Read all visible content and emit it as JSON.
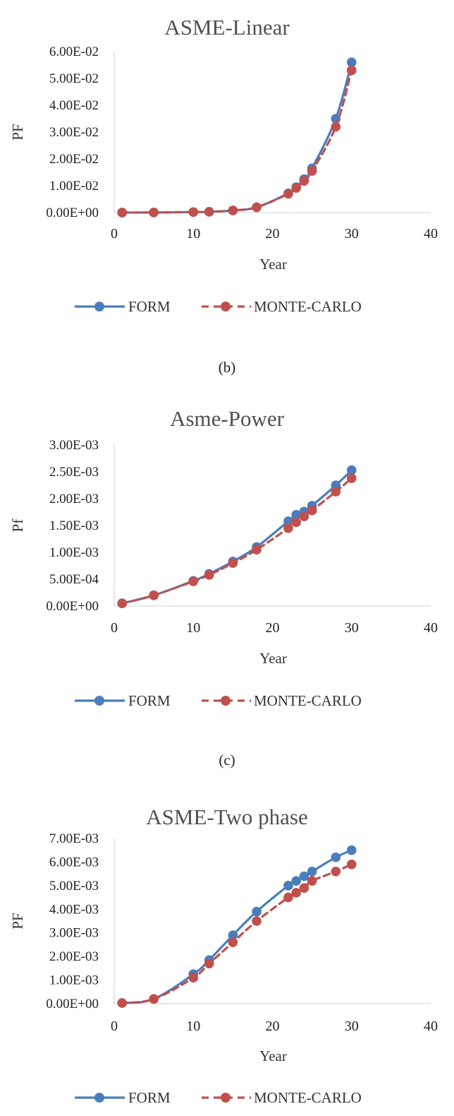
{
  "captions": [
    "(b)",
    "(c)"
  ],
  "legend": {
    "form_label": "FORM",
    "mc_label": "MONTE-CARLO"
  },
  "colors": {
    "form": "#4a7ebb",
    "monte_carlo": "#c0504d",
    "axis": "#d9d9d9",
    "text": "#404040"
  },
  "chart_data": [
    {
      "type": "line",
      "title": "ASME-Linear",
      "xlabel": "Year",
      "ylabel": "PF",
      "xlim": [
        0,
        40
      ],
      "ylim": [
        0,
        0.06
      ],
      "xticks": [
        0,
        10,
        20,
        30,
        40
      ],
      "xtick_labels": [
        "0",
        "10",
        "20",
        "30",
        "40"
      ],
      "yticks": [
        0,
        0.01,
        0.02,
        0.03,
        0.04,
        0.05,
        0.06
      ],
      "ytick_labels": [
        "0.00E+00",
        "1.00E-02",
        "2.00E-02",
        "3.00E-02",
        "4.00E-02",
        "5.00E-02",
        "6.00E-02"
      ],
      "grid": false,
      "legend_position": "bottom",
      "x": [
        1,
        5,
        10,
        12,
        15,
        18,
        22,
        23,
        24,
        25,
        28,
        30
      ],
      "series": [
        {
          "name": "FORM",
          "values": [
            1e-05,
            5e-05,
            0.0002,
            0.0003,
            0.0008,
            0.002,
            0.0072,
            0.0095,
            0.0125,
            0.0165,
            0.035,
            0.056
          ]
        },
        {
          "name": "MONTE-CARLO",
          "values": [
            1e-05,
            5e-05,
            0.0002,
            0.0003,
            0.0008,
            0.002,
            0.007,
            0.0092,
            0.0118,
            0.0155,
            0.032,
            0.053
          ]
        }
      ]
    },
    {
      "type": "line",
      "title": "Asme-Power",
      "xlabel": "Year",
      "ylabel": "Pf",
      "xlim": [
        0,
        40
      ],
      "ylim": [
        0,
        0.003
      ],
      "xticks": [
        0,
        10,
        20,
        30,
        40
      ],
      "xtick_labels": [
        "0",
        "10",
        "20",
        "30",
        "40"
      ],
      "yticks": [
        0,
        0.0005,
        0.001,
        0.0015,
        0.002,
        0.0025,
        0.003
      ],
      "ytick_labels": [
        "0.00E+00",
        "5.00E-04",
        "1.00E-03",
        "1.50E-03",
        "2.00E-03",
        "2.50E-03",
        "3.00E-03"
      ],
      "grid": false,
      "legend_position": "bottom",
      "x": [
        1,
        5,
        10,
        12,
        15,
        18,
        22,
        23,
        24,
        25,
        28,
        30
      ],
      "series": [
        {
          "name": "FORM",
          "values": [
            5e-05,
            0.0002,
            0.00047,
            0.0006,
            0.00083,
            0.0011,
            0.00158,
            0.0017,
            0.00176,
            0.00187,
            0.00225,
            0.00253
          ]
        },
        {
          "name": "MONTE-CARLO",
          "values": [
            5e-05,
            0.0002,
            0.00046,
            0.00058,
            0.0008,
            0.00105,
            0.00145,
            0.00156,
            0.00167,
            0.00178,
            0.00213,
            0.00238
          ]
        }
      ]
    },
    {
      "type": "line",
      "title": "ASME-Two phase",
      "xlabel": "Year",
      "ylabel": "PF",
      "xlim": [
        0,
        40
      ],
      "ylim": [
        0,
        0.007
      ],
      "xticks": [
        0,
        10,
        20,
        30,
        40
      ],
      "xtick_labels": [
        "0",
        "10",
        "20",
        "30",
        "40"
      ],
      "yticks": [
        0,
        0.001,
        0.002,
        0.003,
        0.004,
        0.005,
        0.006,
        0.007
      ],
      "ytick_labels": [
        "0.00E+00",
        "1.00E-03",
        "2.00E-03",
        "3.00E-03",
        "4.00E-03",
        "5.00E-03",
        "6.00E-03",
        "7.00E-03"
      ],
      "grid": false,
      "legend_position": "bottom",
      "x": [
        1,
        5,
        10,
        12,
        15,
        18,
        22,
        23,
        24,
        25,
        28,
        30
      ],
      "series": [
        {
          "name": "FORM",
          "values": [
            3e-05,
            0.0002,
            0.00125,
            0.00185,
            0.0029,
            0.0039,
            0.005,
            0.0052,
            0.0054,
            0.0056,
            0.0062,
            0.0065
          ]
        },
        {
          "name": "MONTE-CARLO",
          "values": [
            3e-05,
            0.0002,
            0.0011,
            0.0017,
            0.0026,
            0.0035,
            0.0045,
            0.0047,
            0.0049,
            0.0052,
            0.0056,
            0.0059
          ]
        }
      ]
    }
  ]
}
